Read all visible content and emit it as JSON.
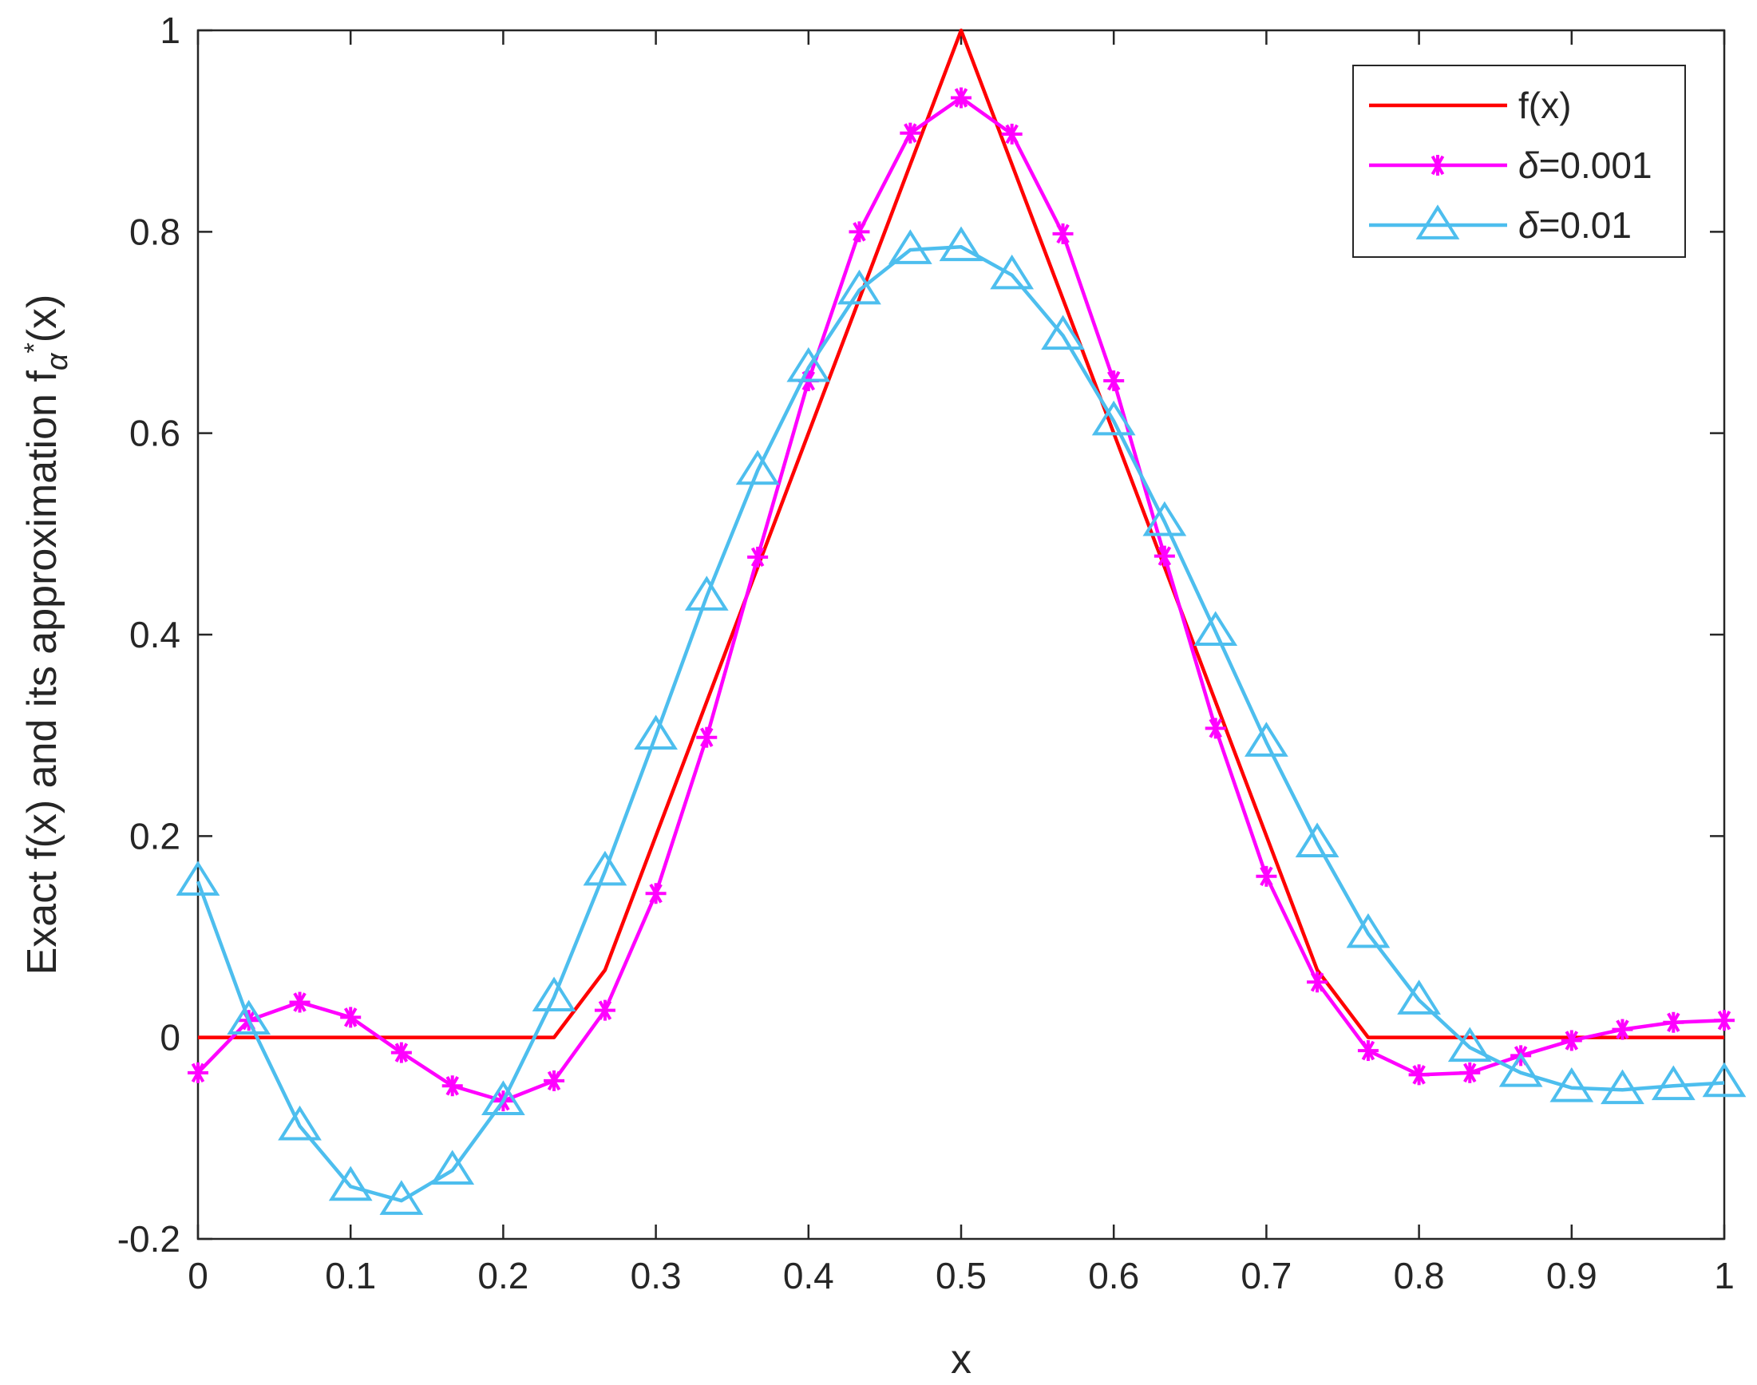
{
  "chart_data": {
    "type": "line",
    "xlabel": "x",
    "ylabel": "Exact f(x) and its approximation f",
    "ylabel_subscript": "α",
    "ylabel_superscript": "*",
    "ylabel_tail": "(x)",
    "xlim": [
      0,
      1
    ],
    "ylim": [
      -0.2,
      1
    ],
    "xticks": [
      0,
      0.1,
      0.2,
      0.3,
      0.4,
      0.5,
      0.6,
      0.7,
      0.8,
      0.9,
      1
    ],
    "xtick_labels": [
      "0",
      "0.1",
      "0.2",
      "0.3",
      "0.4",
      "0.5",
      "0.6",
      "0.7",
      "0.8",
      "0.9",
      "1"
    ],
    "yticks": [
      -0.2,
      0,
      0.2,
      0.4,
      0.6,
      0.8,
      1
    ],
    "ytick_labels": [
      "-0.2",
      "0",
      "0.2",
      "0.4",
      "0.6",
      "0.8",
      "1"
    ],
    "grid": false,
    "legend_position": "top-right",
    "series": [
      {
        "name": "f(x)",
        "name_symbol": "",
        "name_text": "f(x)",
        "color": "#ff0000",
        "marker": "none",
        "x": [
          0,
          0.2333,
          0.2667,
          0.5,
          0.7333,
          0.7667,
          1
        ],
        "y": [
          0,
          0,
          0.067,
          1,
          0.067,
          0,
          0
        ]
      },
      {
        "name": "δ=0.001",
        "name_symbol": "δ",
        "name_text": "=0.001",
        "color": "#ff00ff",
        "marker": "asterisk",
        "x": [
          0,
          0.0333,
          0.0667,
          0.1,
          0.1333,
          0.1667,
          0.2,
          0.2333,
          0.2667,
          0.3,
          0.3333,
          0.3667,
          0.4,
          0.4333,
          0.4667,
          0.5,
          0.5333,
          0.5667,
          0.6,
          0.6333,
          0.6667,
          0.7,
          0.7333,
          0.7667,
          0.8,
          0.8333,
          0.8667,
          0.9,
          0.9333,
          0.9667,
          1
        ],
        "y": [
          -0.035,
          0.017,
          0.035,
          0.02,
          -0.015,
          -0.048,
          -0.063,
          -0.043,
          0.027,
          0.143,
          0.298,
          0.477,
          0.652,
          0.8,
          0.898,
          0.933,
          0.897,
          0.798,
          0.652,
          0.478,
          0.307,
          0.16,
          0.055,
          -0.013,
          -0.037,
          -0.035,
          -0.018,
          -0.003,
          0.008,
          0.015,
          0.017
        ]
      },
      {
        "name": "δ=0.01",
        "name_symbol": "δ",
        "name_text": "=0.01",
        "color": "#4dbeee",
        "marker": "triangle",
        "x": [
          0,
          0.0333,
          0.0667,
          0.1,
          0.1333,
          0.1667,
          0.2,
          0.2333,
          0.2667,
          0.3,
          0.3333,
          0.3667,
          0.4,
          0.4333,
          0.4667,
          0.5,
          0.5333,
          0.5667,
          0.6,
          0.6333,
          0.6667,
          0.7,
          0.7333,
          0.7667,
          0.8,
          0.8333,
          0.8667,
          0.9,
          0.9333,
          0.9667,
          1
        ],
        "y": [
          0.155,
          0.017,
          -0.088,
          -0.148,
          -0.162,
          -0.132,
          -0.063,
          0.04,
          0.165,
          0.3,
          0.438,
          0.563,
          0.665,
          0.742,
          0.782,
          0.785,
          0.757,
          0.697,
          0.612,
          0.512,
          0.403,
          0.293,
          0.193,
          0.103,
          0.037,
          -0.01,
          -0.035,
          -0.05,
          -0.052,
          -0.048,
          -0.045
        ]
      }
    ]
  }
}
